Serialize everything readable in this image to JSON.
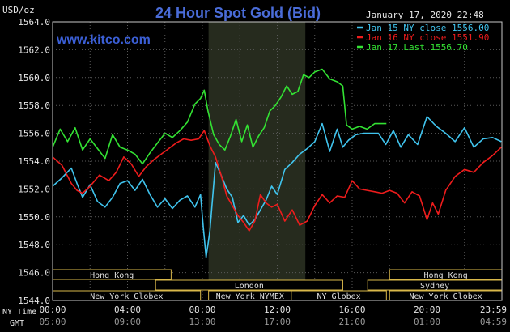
{
  "colors": {
    "background": "#000000",
    "frame": "#c8c8c8",
    "grid": "#5a5a5a",
    "highlight_band": "#262b1e",
    "title": "#4a6cd8",
    "site": "#3b5fd6",
    "text": "#e6e6e6",
    "session_box_fill": "#000000",
    "session_box_stroke": "#d9b84a",
    "session_text": "#e0e0e0",
    "jan15": "#40c4ee",
    "jan16": "#ee1c1c",
    "jan17": "#33e233"
  },
  "header": {
    "title": "24 Hour Spot Gold (Bid)",
    "site": "www.kitco.com",
    "timestamp": "January 17, 2020 22:48",
    "units": "USD/oz"
  },
  "sessions": [
    {
      "name": "Hong Kong",
      "row": 1,
      "start": 0,
      "end": 6.33
    },
    {
      "name": "London",
      "row": 2,
      "start": 5.5,
      "end": 15.5
    },
    {
      "name": "New York Globex",
      "row": 3,
      "start": 0,
      "end": 7.9
    },
    {
      "name": "New York NYMEX",
      "row": 3,
      "start": 8.33,
      "end": 12.75
    },
    {
      "name": "NY Globex",
      "row": 3,
      "start": 12.75,
      "end": 17.83
    },
    {
      "name": "Hong Kong",
      "row": 1,
      "start": 18.0,
      "end": 24.0
    },
    {
      "name": "Sydney",
      "row": 2,
      "start": 16.83,
      "end": 24.0
    },
    {
      "name": "New York Globex",
      "row": 3,
      "start": 18.0,
      "end": 24.0
    }
  ],
  "time_axis": {
    "ny_label": "NY Time",
    "gmt_label": "GMT",
    "ny_ticks": [
      "00:00",
      "04:00",
      "08:00",
      "12:00",
      "16:00",
      "20:00",
      "23:59"
    ],
    "gmt_ticks": [
      "05:00",
      "09:00",
      "13:00",
      "17:00",
      "21:00",
      "01:00",
      "04:59"
    ],
    "tick_hours": [
      0,
      4,
      8,
      12,
      16,
      20,
      24
    ]
  },
  "chart_data": {
    "type": "line",
    "title": "24 Hour Spot Gold (Bid)",
    "ylabel": "USD/oz",
    "xlabel": "NY Time",
    "xlim": [
      0,
      24
    ],
    "ylim": [
      1544.0,
      1564.0
    ],
    "y_ticks": [
      1544.0,
      1546.0,
      1548.0,
      1550.0,
      1552.0,
      1554.0,
      1556.0,
      1558.0,
      1560.0,
      1562.0,
      1564.0
    ],
    "y_tick_labels": [
      "1544.0",
      "1546.0",
      "1548.0",
      "1550.0",
      "1552.0",
      "1554.0",
      "1556.0",
      "1558.0",
      "1560.0",
      "1562.0",
      "1564.0"
    ],
    "x_gridlines": [
      0,
      2,
      4,
      6,
      8,
      10,
      12,
      14,
      16,
      18,
      20,
      22,
      24
    ],
    "highlight_band": [
      8.33,
      13.5
    ],
    "grid": true,
    "legend_position": "top-right",
    "series": [
      {
        "name": "Jan 15 NY close 1556.00",
        "color": "#40c4ee",
        "x": [
          0,
          0.5,
          1.0,
          1.3,
          1.6,
          2.0,
          2.4,
          2.8,
          3.2,
          3.6,
          4.0,
          4.4,
          4.8,
          5.2,
          5.6,
          6.0,
          6.4,
          6.8,
          7.2,
          7.6,
          7.9,
          8.05,
          8.2,
          8.4,
          8.7,
          9.0,
          9.3,
          9.6,
          9.9,
          10.2,
          10.5,
          10.8,
          11.1,
          11.4,
          11.7,
          12.0,
          12.4,
          12.8,
          13.2,
          13.6,
          14.0,
          14.4,
          14.8,
          15.2,
          15.5,
          15.8,
          16.2,
          16.6,
          17.0,
          17.4,
          17.8,
          18.2,
          18.6,
          19.0,
          19.5,
          20.0,
          20.5,
          21.0,
          21.5,
          22.0,
          22.5,
          23.0,
          23.5,
          23.97
        ],
        "y": [
          1552.2,
          1552.8,
          1553.5,
          1552.4,
          1551.4,
          1552.3,
          1551.1,
          1550.7,
          1551.4,
          1552.4,
          1552.6,
          1551.9,
          1552.7,
          1551.6,
          1550.7,
          1551.3,
          1550.6,
          1551.2,
          1551.5,
          1550.7,
          1551.6,
          1549.2,
          1547.1,
          1549.0,
          1553.9,
          1553.0,
          1552.0,
          1551.4,
          1549.6,
          1550.1,
          1549.4,
          1549.8,
          1550.5,
          1551.2,
          1552.2,
          1551.6,
          1553.4,
          1553.9,
          1554.5,
          1554.9,
          1555.4,
          1556.7,
          1554.7,
          1556.3,
          1555.0,
          1555.5,
          1555.9,
          1556.0,
          1556.0,
          1556.0,
          1555.2,
          1556.2,
          1555.0,
          1555.9,
          1555.2,
          1557.2,
          1556.5,
          1556.0,
          1555.4,
          1556.4,
          1555.0,
          1555.6,
          1555.7,
          1555.4
        ]
      },
      {
        "name": "Jan 16 NY close 1551.90",
        "color": "#ee1c1c",
        "x": [
          0,
          0.5,
          1.0,
          1.3,
          1.6,
          2.0,
          2.5,
          3.0,
          3.4,
          3.8,
          4.2,
          4.6,
          5.0,
          5.4,
          5.8,
          6.2,
          6.6,
          7.0,
          7.4,
          7.8,
          8.1,
          8.4,
          8.7,
          9.0,
          9.3,
          9.6,
          9.9,
          10.2,
          10.5,
          10.8,
          11.1,
          11.4,
          11.7,
          12.0,
          12.4,
          12.8,
          13.2,
          13.6,
          14.0,
          14.4,
          14.8,
          15.2,
          15.6,
          16.0,
          16.4,
          16.8,
          17.2,
          17.6,
          18.0,
          18.4,
          18.8,
          19.2,
          19.6,
          20.0,
          20.3,
          20.6,
          21.0,
          21.5,
          22.0,
          22.5,
          23.0,
          23.5,
          23.97
        ],
        "y": [
          1554.3,
          1553.7,
          1552.4,
          1551.9,
          1551.7,
          1552.2,
          1553.0,
          1552.6,
          1553.2,
          1554.3,
          1553.8,
          1552.9,
          1553.6,
          1554.1,
          1554.5,
          1554.9,
          1555.3,
          1555.6,
          1555.5,
          1555.6,
          1556.2,
          1555.1,
          1554.3,
          1553.0,
          1551.5,
          1550.8,
          1550.1,
          1549.6,
          1549.0,
          1549.7,
          1551.6,
          1551.0,
          1550.7,
          1550.9,
          1549.7,
          1550.5,
          1549.4,
          1549.7,
          1550.8,
          1551.6,
          1551.0,
          1551.5,
          1551.4,
          1552.6,
          1552.0,
          1551.9,
          1551.8,
          1551.7,
          1551.9,
          1551.7,
          1551.0,
          1551.8,
          1551.5,
          1549.8,
          1551.0,
          1550.2,
          1551.9,
          1552.9,
          1553.4,
          1553.2,
          1553.9,
          1554.4,
          1555.0
        ]
      },
      {
        "name": "Jan 17 Last 1556.70",
        "color": "#33e233",
        "x": [
          0,
          0.4,
          0.8,
          1.2,
          1.6,
          2.0,
          2.4,
          2.8,
          3.2,
          3.6,
          4.0,
          4.4,
          4.8,
          5.2,
          5.6,
          6.0,
          6.4,
          6.8,
          7.2,
          7.6,
          7.9,
          8.1,
          8.3,
          8.6,
          8.9,
          9.2,
          9.5,
          9.8,
          10.1,
          10.4,
          10.7,
          11.0,
          11.3,
          11.6,
          11.9,
          12.2,
          12.5,
          12.8,
          13.1,
          13.4,
          13.7,
          14.0,
          14.4,
          14.8,
          15.2,
          15.5,
          15.7,
          16.0,
          16.4,
          16.8,
          17.2,
          17.6,
          17.83
        ],
        "y": [
          1555.0,
          1556.3,
          1555.4,
          1556.4,
          1554.8,
          1555.6,
          1554.9,
          1554.2,
          1555.9,
          1555.0,
          1554.8,
          1554.5,
          1553.8,
          1554.6,
          1555.3,
          1556.0,
          1555.7,
          1556.2,
          1556.8,
          1558.1,
          1558.5,
          1559.1,
          1557.6,
          1555.9,
          1555.2,
          1554.8,
          1555.8,
          1557.0,
          1555.4,
          1556.6,
          1555.0,
          1555.8,
          1556.4,
          1557.6,
          1558.0,
          1558.6,
          1559.4,
          1558.8,
          1559.0,
          1560.2,
          1560.0,
          1560.4,
          1560.6,
          1559.9,
          1559.7,
          1559.4,
          1556.6,
          1556.3,
          1556.5,
          1556.3,
          1556.7,
          1556.7,
          1556.7
        ]
      }
    ]
  }
}
